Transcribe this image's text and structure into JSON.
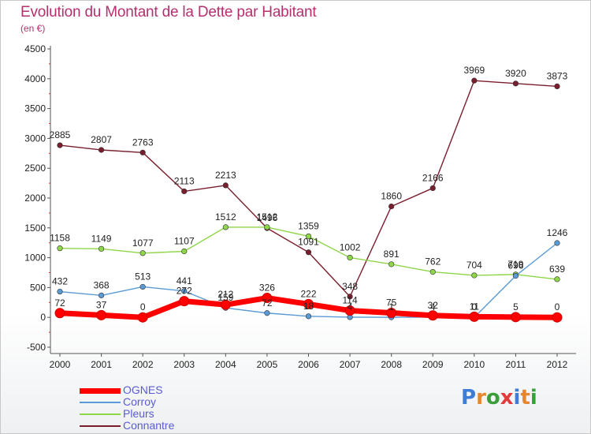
{
  "header": {
    "title": "Evolution du Montant de la Dette par Habitant",
    "subtitle": "(en €)"
  },
  "logo": {
    "text": "Proxiti",
    "colors": [
      "#3b7dd8",
      "#e8862e",
      "#3b9e3b",
      "#e23b3b",
      "#3b7dd8",
      "#e8862e",
      "#3b9e3b"
    ]
  },
  "chart_data": {
    "type": "line",
    "title": "Evolution du Montant de la Dette par Habitant",
    "subtitle": "(en €)",
    "categories": [
      "2000",
      "2001",
      "2002",
      "2003",
      "2004",
      "2005",
      "2006",
      "2007",
      "2008",
      "2009",
      "2010",
      "2011",
      "2012"
    ],
    "ylim": [
      -500,
      4500
    ],
    "yticks": [
      -500,
      0,
      500,
      1000,
      1500,
      2000,
      2500,
      3000,
      3500,
      4000,
      4500
    ],
    "grid": false,
    "legend_position": "bottom-left",
    "series": [
      {
        "name": "OGNES",
        "color": "#ff0000",
        "values": [
          72,
          37,
          0,
          272,
          212,
          326,
          222,
          114,
          75,
          32,
          11,
          5,
          0
        ],
        "labels": [
          "72",
          "37",
          "0",
          "272",
          "212",
          "326",
          "222",
          "114",
          "75",
          "32",
          "11",
          "5",
          "0"
        ]
      },
      {
        "name": "Corroy",
        "color": "#5b9bd5",
        "values": [
          432,
          368,
          513,
          441,
          159,
          72,
          18,
          4,
          1,
          4,
          0,
          696,
          1246
        ],
        "labels": [
          "432",
          "368",
          "513",
          "441",
          "159",
          "72",
          "18",
          "4",
          "1",
          "4",
          "0",
          "696",
          "1246"
        ]
      },
      {
        "name": "Pleurs",
        "color": "#8fd64a",
        "values": [
          1158,
          1149,
          1077,
          1107,
          1512,
          1512,
          1359,
          1002,
          891,
          762,
          704,
          719,
          639
        ],
        "labels": [
          "1158",
          "1149",
          "1077",
          "1107",
          "1512",
          "1512",
          "1359",
          "1002",
          "891",
          "762",
          "704",
          "719",
          "639"
        ]
      },
      {
        "name": "Connantre",
        "color": "#7a1e2e",
        "values": [
          2885,
          2807,
          2763,
          2113,
          2213,
          1496,
          1091,
          348,
          1860,
          2166,
          3969,
          3920,
          3873
        ],
        "labels": [
          "2885",
          "2807",
          "2763",
          "2113",
          "2213",
          "1496",
          "1091",
          "348",
          "1860",
          "2166",
          "3969",
          "3920",
          "3873"
        ]
      }
    ]
  }
}
